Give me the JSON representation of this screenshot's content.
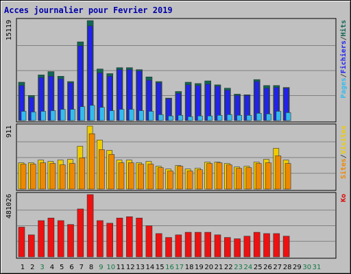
{
  "chart_data": {
    "type": "bar",
    "title": "Acces journalier pour Fevrier 2019",
    "categories": [
      "1",
      "2",
      "3",
      "4",
      "5",
      "6",
      "7",
      "8",
      "9",
      "10",
      "11",
      "12",
      "13",
      "14",
      "15",
      "16",
      "17",
      "18",
      "19",
      "20",
      "21",
      "22",
      "23",
      "24",
      "25",
      "26",
      "27",
      "28",
      "29",
      "30",
      "31"
    ],
    "weekend_days": [
      3,
      9,
      10,
      16,
      17,
      23,
      24,
      30,
      31
    ],
    "panels": [
      {
        "name": "hits-fichiers-pages",
        "max_label": "15119",
        "ymax": 15119,
        "legend": [
          {
            "label": "Pages",
            "color": "#33bbee"
          },
          {
            "label": "/",
            "color": "#444444"
          },
          {
            "label": "Fichiers",
            "color": "#2222ee"
          },
          {
            "label": "/",
            "color": "#444444"
          },
          {
            "label": "Hits",
            "color": "#116655"
          }
        ],
        "series": [
          {
            "name": "Hits",
            "color": "#116655",
            "values": [
              5800,
              3800,
              6900,
              7400,
              6700,
              5900,
              11900,
              15119,
              7800,
              7100,
              8000,
              8000,
              7700,
              6600,
              5900,
              3400,
              4400,
              5800,
              5600,
              6000,
              5400,
              4900,
              4000,
              3900,
              6200,
              5300,
              5300,
              5000,
              null,
              null,
              null
            ]
          },
          {
            "name": "Fichiers",
            "color": "#2222ee",
            "values": [
              5300,
              3500,
              6500,
              6700,
              6300,
              5700,
              11300,
              14300,
              7200,
              6700,
              7700,
              7700,
              7500,
              6100,
              5700,
              3300,
              4100,
              5400,
              5300,
              5500,
              5200,
              4600,
              3800,
              3800,
              5900,
              4900,
              5000,
              4900,
              null,
              null,
              null
            ]
          },
          {
            "name": "Pages",
            "color": "#33bbee",
            "values": [
              1400,
              1300,
              1400,
              1500,
              1700,
              1700,
              2100,
              2300,
              2000,
              1500,
              1700,
              1700,
              1500,
              1400,
              900,
              700,
              800,
              600,
              700,
              700,
              800,
              900,
              800,
              800,
              1100,
              1000,
              1400,
              1200,
              null,
              null,
              null
            ]
          }
        ]
      },
      {
        "name": "visites-sites",
        "max_label": "911",
        "ymax": 911,
        "legend": [
          {
            "label": "Sites",
            "color": "#ee8800"
          },
          {
            "label": "/",
            "color": "#444444"
          },
          {
            "label": "Visites",
            "color": "#eecc00"
          }
        ],
        "series": [
          {
            "name": "Visites",
            "color": "#eecc00",
            "values": [
              380,
              380,
              420,
              400,
              420,
              430,
              620,
              911,
              710,
              560,
              420,
              420,
              380,
              400,
              330,
              290,
              340,
              290,
              300,
              390,
              390,
              370,
              320,
              330,
              390,
              430,
              590,
              420,
              null,
              null,
              null
            ]
          },
          {
            "name": "Sites",
            "color": "#ee8800",
            "values": [
              360,
              360,
              380,
              370,
              350,
              370,
              450,
              800,
              570,
              500,
              380,
              380,
              360,
              360,
              310,
              260,
              330,
              260,
              280,
              370,
              380,
              350,
              300,
              310,
              370,
              380,
              480,
              370,
              null,
              null,
              null
            ]
          }
        ]
      },
      {
        "name": "ko",
        "max_label": "481026",
        "ymax": 481026,
        "legend": [
          {
            "label": "Ko",
            "color": "#dd0000"
          }
        ],
        "series": [
          {
            "name": "Ko",
            "color": "#ee1111",
            "values": [
              230000,
              170000,
              280000,
              300000,
              280000,
              250000,
              370000,
              481026,
              280000,
              260000,
              300000,
              310000,
              300000,
              240000,
              180000,
              150000,
              170000,
              190000,
              190000,
              190000,
              170000,
              150000,
              140000,
              160000,
              190000,
              180000,
              180000,
              160000,
              null,
              null,
              null
            ]
          }
        ]
      }
    ]
  }
}
